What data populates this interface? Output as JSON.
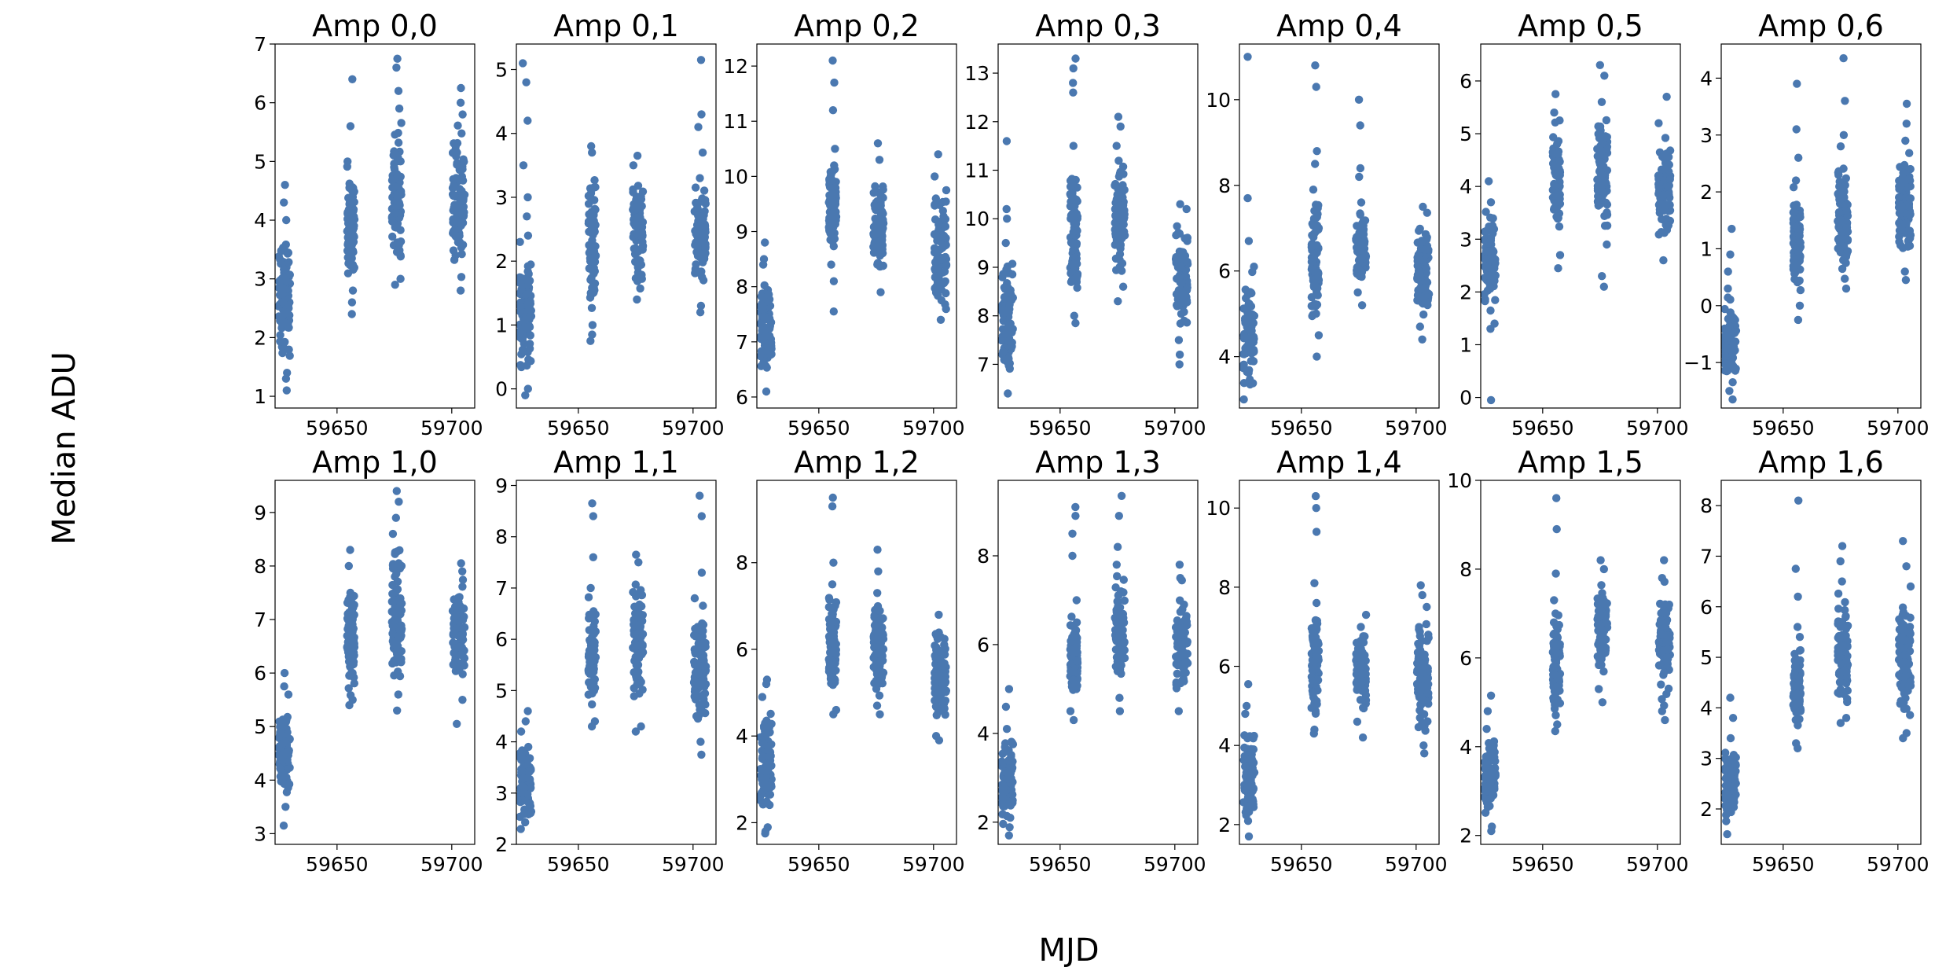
{
  "figure": {
    "xlabel": "MJD",
    "ylabel": "Median ADU",
    "marker_color": "#4a78b0"
  },
  "chart_data": {
    "type": "scatter",
    "layout": {
      "rows": 2,
      "cols": 7
    },
    "xlim": [
      59623,
      59710
    ],
    "xticks": [
      59650,
      59700
    ],
    "epochs": [
      {
        "mjd": 59627,
        "jitter": 2.5
      },
      {
        "mjd": 59656,
        "jitter": 1.6
      },
      {
        "mjd": 59676,
        "jitter": 2.2
      },
      {
        "mjd": 59703,
        "jitter": 2.6
      }
    ],
    "panels": [
      {
        "title": "Amp 0,0",
        "ylim": [
          0.8,
          7.0
        ],
        "yticks": [
          1,
          2,
          3,
          4,
          5,
          6,
          7
        ],
        "clusters": [
          {
            "mjd": 59627,
            "range": [
              1.3,
              4.0
            ],
            "outliers": [
              1.1,
              4.3,
              4.6,
              1.4
            ]
          },
          {
            "mjd": 59656,
            "range": [
              2.8,
              5.0
            ],
            "outliers": [
              2.4,
              5.6,
              6.4,
              2.6
            ]
          },
          {
            "mjd": 59676,
            "range": [
              3.0,
              5.9
            ],
            "outliers": [
              2.9,
              6.2,
              6.6,
              6.75
            ]
          },
          {
            "mjd": 59703,
            "range": [
              2.8,
              5.8
            ],
            "outliers": [
              6.0,
              6.25
            ]
          }
        ]
      },
      {
        "title": "Amp 0,1",
        "ylim": [
          -0.3,
          5.4
        ],
        "yticks": [
          0,
          1,
          2,
          3,
          4,
          5
        ],
        "clusters": [
          {
            "mjd": 59627,
            "range": [
              0.0,
              2.3
            ],
            "outliers": [
              -0.1,
              3.0,
              3.5,
              4.2,
              4.8,
              5.1,
              2.7,
              2.4
            ]
          },
          {
            "mjd": 59656,
            "range": [
              1.0,
              3.7
            ],
            "outliers": [
              0.75,
              0.85,
              3.8
            ]
          },
          {
            "mjd": 59676,
            "range": [
              1.4,
              3.5
            ],
            "outliers": [
              3.65
            ]
          },
          {
            "mjd": 59703,
            "range": [
              1.3,
              3.3
            ],
            "outliers": [
              1.2,
              3.7,
              4.1,
              4.3,
              5.15
            ]
          }
        ]
      },
      {
        "title": "Amp 0,2",
        "ylim": [
          5.8,
          12.4
        ],
        "yticks": [
          6,
          7,
          8,
          9,
          10,
          11,
          12
        ],
        "clusters": [
          {
            "mjd": 59627,
            "range": [
              6.1,
              8.4
            ],
            "outliers": [
              8.5,
              8.8
            ]
          },
          {
            "mjd": 59656,
            "range": [
              8.4,
              10.5
            ],
            "outliers": [
              7.55,
              8.1,
              11.2,
              11.7,
              12.1
            ]
          },
          {
            "mjd": 59676,
            "range": [
              7.9,
              10.3
            ],
            "outliers": [
              10.6
            ]
          },
          {
            "mjd": 59703,
            "range": [
              7.4,
              10.0
            ],
            "outliers": [
              10.4
            ]
          }
        ]
      },
      {
        "title": "Amp 0,3",
        "ylim": [
          6.1,
          13.6
        ],
        "yticks": [
          7,
          8,
          9,
          10,
          11,
          12,
          13
        ],
        "clusters": [
          {
            "mjd": 59627,
            "range": [
              6.4,
              9.5
            ],
            "outliers": [
              10.2,
              11.6,
              10.0
            ]
          },
          {
            "mjd": 59656,
            "range": [
              8.0,
              11.5
            ],
            "outliers": [
              7.85,
              12.6,
              12.8,
              13.1,
              13.3
            ]
          },
          {
            "mjd": 59676,
            "range": [
              8.6,
              11.5
            ],
            "outliers": [
              8.3,
              11.9,
              12.1
            ]
          },
          {
            "mjd": 59703,
            "range": [
              7.5,
              10.2
            ],
            "outliers": [
              7.0,
              7.2,
              10.3
            ]
          }
        ]
      },
      {
        "title": "Amp 0,4",
        "ylim": [
          2.8,
          11.3
        ],
        "yticks": [
          4,
          6,
          8,
          10
        ],
        "clusters": [
          {
            "mjd": 59627,
            "range": [
              3.0,
              6.1
            ],
            "outliers": [
              6.7,
              7.7,
              11.0
            ]
          },
          {
            "mjd": 59656,
            "range": [
              4.5,
              7.9
            ],
            "outliers": [
              4.0,
              8.5,
              8.8,
              10.3,
              10.8
            ]
          },
          {
            "mjd": 59676,
            "range": [
              5.5,
              7.6
            ],
            "outliers": [
              5.2,
              8.2,
              8.4,
              9.4,
              10.0
            ]
          },
          {
            "mjd": 59703,
            "range": [
              4.7,
              7.5
            ],
            "outliers": [
              4.4
            ]
          }
        ]
      },
      {
        "title": "Amp 0,5",
        "ylim": [
          -0.2,
          6.7
        ],
        "yticks": [
          0,
          1,
          2,
          3,
          4,
          5,
          6
        ],
        "clusters": [
          {
            "mjd": 59627,
            "range": [
              1.4,
              3.7
            ],
            "outliers": [
              -0.05,
              1.3,
              4.1
            ]
          },
          {
            "mjd": 59656,
            "range": [
              2.7,
              5.4
            ],
            "outliers": [
              2.45,
              5.75
            ]
          },
          {
            "mjd": 59676,
            "range": [
              2.9,
              5.6
            ],
            "outliers": [
              2.1,
              2.3,
              6.1,
              6.3
            ]
          },
          {
            "mjd": 59703,
            "range": [
              2.6,
              5.2
            ],
            "outliers": [
              5.7
            ]
          }
        ]
      },
      {
        "title": "Amp 0,6",
        "ylim": [
          -1.8,
          4.6
        ],
        "yticks": [
          -1,
          0,
          1,
          2,
          3,
          4
        ],
        "clusters": [
          {
            "mjd": 59627,
            "range": [
              -1.5,
              0.3
            ],
            "outliers": [
              -1.65,
              0.6,
              0.9,
              1.35
            ]
          },
          {
            "mjd": 59656,
            "range": [
              0.0,
              2.2
            ],
            "outliers": [
              -0.25,
              2.6,
              3.1,
              3.9
            ]
          },
          {
            "mjd": 59676,
            "range": [
              0.3,
              2.8
            ],
            "outliers": [
              3.0,
              3.6,
              4.35
            ]
          },
          {
            "mjd": 59703,
            "range": [
              0.6,
              2.9
            ],
            "outliers": [
              0.45,
              3.2,
              3.55
            ]
          }
        ]
      },
      {
        "title": "Amp 1,0",
        "ylim": [
          2.8,
          9.6
        ],
        "yticks": [
          3,
          4,
          5,
          6,
          7,
          8,
          9
        ],
        "clusters": [
          {
            "mjd": 59627,
            "range": [
              3.5,
              5.6
            ],
            "outliers": [
              3.15,
              5.75,
              6.0
            ]
          },
          {
            "mjd": 59656,
            "range": [
              5.5,
              8.0
            ],
            "outliers": [
              5.4,
              8.3
            ]
          },
          {
            "mjd": 59676,
            "range": [
              5.6,
              8.6
            ],
            "outliers": [
              5.3,
              8.9,
              9.2,
              9.4
            ]
          },
          {
            "mjd": 59703,
            "range": [
              5.5,
              7.9
            ],
            "outliers": [
              5.05,
              8.05
            ]
          }
        ]
      },
      {
        "title": "Amp 1,1",
        "ylim": [
          2.0,
          9.1
        ],
        "yticks": [
          2,
          3,
          4,
          5,
          6,
          7,
          8,
          9
        ],
        "clusters": [
          {
            "mjd": 59627,
            "range": [
              2.3,
              4.2
            ],
            "outliers": [
              4.4,
              4.6
            ]
          },
          {
            "mjd": 59656,
            "range": [
              4.4,
              7.0
            ],
            "outliers": [
              4.3,
              7.6,
              8.4,
              8.65
            ]
          },
          {
            "mjd": 59676,
            "range": [
              4.3,
              7.5
            ],
            "outliers": [
              4.2,
              7.65
            ]
          },
          {
            "mjd": 59703,
            "range": [
              4.0,
              6.8
            ],
            "outliers": [
              3.75,
              7.3,
              8.4,
              8.8
            ]
          }
        ]
      },
      {
        "title": "Amp 1,2",
        "ylim": [
          1.5,
          9.9
        ],
        "yticks": [
          2,
          4,
          6,
          8
        ],
        "clusters": [
          {
            "mjd": 59627,
            "range": [
              1.8,
              4.9
            ],
            "outliers": [
              1.75,
              5.2,
              5.3
            ]
          },
          {
            "mjd": 59656,
            "range": [
              4.6,
              7.5
            ],
            "outliers": [
              4.5,
              8.0,
              9.3,
              9.5
            ]
          },
          {
            "mjd": 59676,
            "range": [
              4.7,
              7.3
            ],
            "outliers": [
              4.5,
              7.8,
              8.3
            ]
          },
          {
            "mjd": 59703,
            "range": [
              4.0,
              6.8
            ],
            "outliers": [
              3.9
            ]
          }
        ]
      },
      {
        "title": "Amp 1,3",
        "ylim": [
          1.5,
          9.7
        ],
        "yticks": [
          2,
          4,
          6,
          8
        ],
        "clusters": [
          {
            "mjd": 59627,
            "range": [
              1.7,
              4.1
            ],
            "outliers": [
              4.6,
              5.0
            ]
          },
          {
            "mjd": 59656,
            "range": [
              4.5,
              7.0
            ],
            "outliers": [
              4.3,
              8.0,
              8.5,
              8.9,
              9.1
            ]
          },
          {
            "mjd": 59676,
            "range": [
              4.8,
              7.8
            ],
            "outliers": [
              4.5,
              8.2,
              8.9,
              9.35
            ]
          },
          {
            "mjd": 59703,
            "range": [
              4.5,
              7.5
            ],
            "outliers": [
              7.8
            ]
          }
        ]
      },
      {
        "title": "Amp 1,4",
        "ylim": [
          1.5,
          10.7
        ],
        "yticks": [
          2,
          4,
          6,
          8,
          10
        ],
        "clusters": [
          {
            "mjd": 59627,
            "range": [
              1.7,
              4.8
            ],
            "outliers": [
              5.0,
              5.55
            ]
          },
          {
            "mjd": 59656,
            "range": [
              4.4,
              7.6
            ],
            "outliers": [
              4.3,
              8.1,
              9.4,
              10.0,
              10.3
            ]
          },
          {
            "mjd": 59676,
            "range": [
              4.6,
              7.3
            ],
            "outliers": [
              4.2
            ]
          },
          {
            "mjd": 59703,
            "range": [
              4.0,
              7.5
            ],
            "outliers": [
              3.8,
              7.8,
              8.05
            ]
          }
        ]
      },
      {
        "title": "Amp 1,5",
        "ylim": [
          1.8,
          10.0
        ],
        "yticks": [
          2,
          4,
          6,
          8,
          10
        ],
        "clusters": [
          {
            "mjd": 59627,
            "range": [
              2.2,
              4.4
            ],
            "outliers": [
              2.1,
              4.8,
              5.15
            ]
          },
          {
            "mjd": 59656,
            "range": [
              4.5,
              7.3
            ],
            "outliers": [
              4.35,
              7.9,
              8.9,
              9.6
            ]
          },
          {
            "mjd": 59676,
            "range": [
              5.3,
              8.0
            ],
            "outliers": [
              5.0,
              8.2
            ]
          },
          {
            "mjd": 59703,
            "range": [
              4.8,
              7.8
            ],
            "outliers": [
              4.6,
              8.2
            ]
          }
        ]
      },
      {
        "title": "Amp 1,6",
        "ylim": [
          1.3,
          8.5
        ],
        "yticks": [
          2,
          3,
          4,
          5,
          6,
          7,
          8
        ],
        "clusters": [
          {
            "mjd": 59627,
            "range": [
              1.5,
              3.4
            ],
            "outliers": [
              3.8,
              4.2
            ]
          },
          {
            "mjd": 59656,
            "range": [
              3.3,
              5.6
            ],
            "outliers": [
              3.2,
              6.2,
              6.75,
              8.1
            ]
          },
          {
            "mjd": 59676,
            "range": [
              3.8,
              6.5
            ],
            "outliers": [
              3.7,
              6.9,
              7.2
            ]
          },
          {
            "mjd": 59703,
            "range": [
              3.5,
              6.4
            ],
            "outliers": [
              3.4,
              6.8,
              7.3
            ]
          }
        ]
      }
    ]
  }
}
